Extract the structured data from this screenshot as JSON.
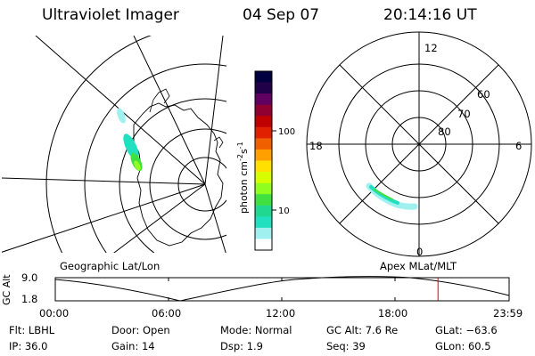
{
  "header": {
    "instrument": "Ultraviolet Imager",
    "date": "04 Sep 07",
    "time": "20:14:16 UT"
  },
  "colorbar": {
    "unit_label": "photon cm",
    "unit_exp1": "-2",
    "unit_mid": "s",
    "unit_exp2": "-1",
    "tick_100": "100",
    "tick_10": "10",
    "colors": [
      "#000040",
      "#200048",
      "#600060",
      "#900030",
      "#c00000",
      "#e02000",
      "#f06000",
      "#ffa000",
      "#ffe000",
      "#d8ff00",
      "#90ff20",
      "#40e040",
      "#20d890",
      "#20e0c0",
      "#a0f0f0",
      "#ffffff"
    ]
  },
  "polar_plot": {
    "mlt_labels": {
      "top": "12",
      "left": "18",
      "right": "6",
      "bottom": "0"
    },
    "lat_labels": [
      "60",
      "70",
      "80"
    ]
  },
  "labels": {
    "left_map": "Geographic Lat/Lon",
    "right_map": "Apex  MLat/MLT"
  },
  "altitude_plot": {
    "axis_title": "GC Alt",
    "y_max": "9.0",
    "y_min": "1.8",
    "x_ticks": [
      "00:00",
      "06:00",
      "12:00",
      "18:00",
      "23:59"
    ],
    "current_time_fraction": 0.8433
  },
  "status": {
    "row1": [
      {
        "key": "Flt:",
        "val": "LBHL"
      },
      {
        "key": "Door:",
        "val": "Open"
      },
      {
        "key": "Mode:",
        "val": "Normal"
      },
      {
        "key": "GC Alt:",
        "val": "7.6 Re"
      },
      {
        "key": "GLat:",
        "val": "−63.6"
      }
    ],
    "row2": [
      {
        "key": "IP:",
        "val": "36.0"
      },
      {
        "key": "Gain:",
        "val": "14"
      },
      {
        "key": "Dsp:",
        "val": "1.9"
      },
      {
        "key": "Seq:",
        "val": "39"
      },
      {
        "key": "GLon:",
        "val": "60.5"
      }
    ]
  }
}
